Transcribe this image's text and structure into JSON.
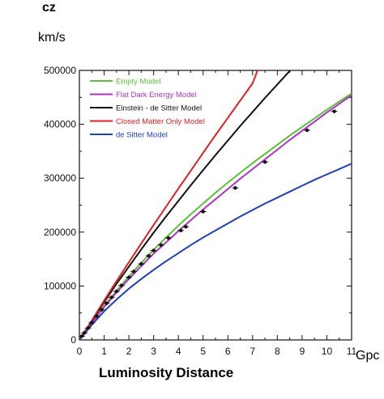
{
  "chart_data": {
    "type": "line",
    "y_axis_top_label": "cz",
    "y_unit": "km/s",
    "xlabel": "Luminosity Distance",
    "x_unit": "Gpc",
    "xlim": [
      0,
      11
    ],
    "ylim": [
      0,
      500000
    ],
    "x_ticks": [
      0,
      1,
      2,
      3,
      4,
      5,
      6,
      7,
      8,
      9,
      10,
      11
    ],
    "y_ticks": [
      0,
      100000,
      200000,
      300000,
      400000,
      500000
    ],
    "grid": false,
    "legend_position": "top-left",
    "series": [
      {
        "name": "Empty Model",
        "color": "#58c236",
        "x": [
          0,
          0.5,
          1,
          1.5,
          2,
          2.5,
          3,
          3.5,
          4,
          4.5,
          5,
          5.5,
          6,
          6.5,
          7,
          7.5,
          8,
          8.5,
          9,
          9.5,
          10,
          10.5,
          11
        ],
        "y": [
          0,
          32000,
          63000,
          91000,
          118000,
          143000,
          167000,
          190000,
          212000,
          233000,
          253000,
          273000,
          292000,
          310000,
          328000,
          345000,
          362000,
          379000,
          395000,
          411000,
          427000,
          442000,
          457000
        ]
      },
      {
        "name": "Flat Dark Energy Model",
        "color": "#b030c8",
        "x": [
          0,
          0.5,
          1,
          1.5,
          2,
          2.5,
          3,
          3.5,
          4,
          4.5,
          5,
          5.5,
          6,
          6.5,
          7,
          7.5,
          8,
          8.5,
          9,
          9.5,
          10,
          10.5,
          11
        ],
        "y": [
          0,
          31500,
          61000,
          88000,
          113000,
          137000,
          160000,
          181000,
          202000,
          222000,
          242000,
          261000,
          280000,
          299000,
          317000,
          335000,
          353000,
          371000,
          388000,
          405000,
          422000,
          438000,
          454000
        ]
      },
      {
        "name": "Einstein - de Sitter Model",
        "color": "#111111",
        "x": [
          0,
          0.5,
          1,
          1.5,
          2,
          2.5,
          3,
          3.5,
          4,
          4.5,
          5,
          5.5,
          6,
          6.5,
          7,
          7.5,
          8,
          8.5,
          8.9
        ],
        "y": [
          0,
          35000,
          70000,
          104000,
          136000,
          168000,
          199000,
          229000,
          258000,
          287000,
          315000,
          343000,
          370000,
          397000,
          423000,
          449000,
          474000,
          499000,
          518000
        ]
      },
      {
        "name": "Closed Matter Only Model",
        "color": "#e02020",
        "x": [
          0,
          0.5,
          1,
          1.5,
          2,
          2.5,
          3,
          3.5,
          4,
          4.5,
          5,
          5.5,
          6,
          6.5,
          7,
          7.2
        ],
        "y": [
          0,
          36000,
          73000,
          109000,
          144000,
          179000,
          213000,
          247000,
          281000,
          314000,
          347000,
          380000,
          412000,
          444000,
          476000,
          500000
        ]
      },
      {
        "name": "de Sitter Model",
        "color": "#1e40b8",
        "x": [
          0,
          0.5,
          1,
          1.5,
          2,
          2.5,
          3,
          3.5,
          4,
          4.5,
          5,
          5.5,
          6,
          6.5,
          7,
          7.5,
          8,
          8.5,
          9,
          9.5,
          10,
          10.5,
          11
        ],
        "y": [
          0,
          28000,
          53000,
          75000,
          95000,
          113000,
          130000,
          146000,
          161000,
          176000,
          190000,
          203000,
          216000,
          229000,
          241000,
          253000,
          264000,
          275000,
          286000,
          297000,
          307000,
          317000,
          327000
        ]
      }
    ],
    "observations": {
      "x": [
        0.1,
        0.2,
        0.35,
        0.5,
        0.7,
        0.9,
        1.1,
        1.3,
        1.5,
        1.7,
        2.0,
        2.2,
        2.5,
        2.8,
        3.0,
        3.3,
        3.6,
        4.1,
        4.3,
        5.0,
        6.3,
        7.5,
        9.2,
        10.3
      ],
      "y": [
        7000,
        13000,
        22000,
        32000,
        44000,
        56000,
        68000,
        79000,
        90000,
        101000,
        116000,
        127000,
        141000,
        156000,
        166000,
        176000,
        189000,
        203000,
        210000,
        238000,
        282000,
        330000,
        389000,
        424000
      ]
    },
    "colors": {
      "axis": "#111111",
      "background": "#ffffff"
    }
  }
}
